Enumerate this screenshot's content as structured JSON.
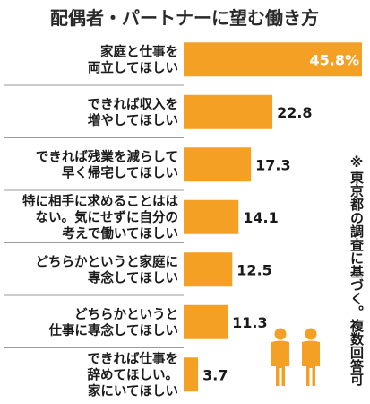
{
  "chart_data": {
    "type": "bar",
    "orientation": "horizontal",
    "title": "配偶者・パートナーに望む働き方",
    "categories": [
      [
        "家庭と仕事を",
        "両立してほしい"
      ],
      [
        "できれば収入を",
        "増やしてほしい"
      ],
      [
        "できれば残業を減らして",
        "早く帰宅してほしい"
      ],
      [
        "特に相手に求めることはは",
        "ない。気にせずに自分の",
        "考えで働いてほしい"
      ],
      [
        "どちらかというと家庭に",
        "専念してほしい"
      ],
      [
        "どちらかというと",
        "仕事に専念してほしい"
      ],
      [
        "できれば仕事を",
        "辞めてほしい。",
        "家にいてほしい"
      ]
    ],
    "values": [
      45.8,
      22.8,
      17.3,
      14.1,
      12.5,
      11.3,
      3.7
    ],
    "value_labels": [
      "45.8%",
      "22.8",
      "17.3",
      "14.1",
      "12.5",
      "11.3",
      "3.7"
    ],
    "xlim": [
      0,
      45.8
    ],
    "legend": "none",
    "grid": false,
    "note": "※東京都の調査に基づく。複数回答可"
  },
  "colors": {
    "bar": "#f4a025",
    "separator": "#9a9a9a",
    "figure": "#f4a025",
    "title": "#2a2a2a",
    "text": "#1a1a1a"
  },
  "icon": "two-people-icon"
}
